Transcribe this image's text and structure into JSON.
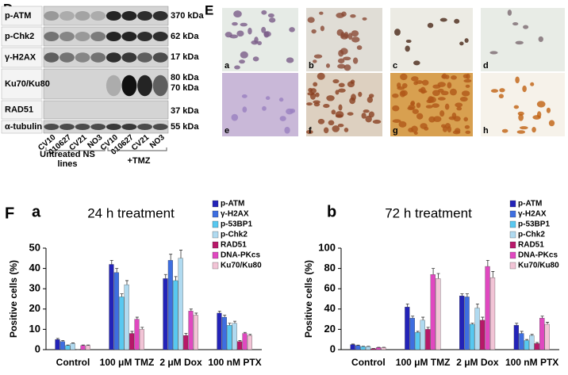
{
  "panel_d": {
    "letter": "D",
    "proteins": [
      "p-ATM",
      "p-Chk2",
      "γ-H2AX",
      "Ku70/Ku80",
      "RAD51",
      "α-tubulin"
    ],
    "sizes": [
      "370 kDa",
      "62 kDa",
      "17 kDa",
      "80 kDa",
      "70 kDa",
      "37 kDa",
      "55 kDa"
    ],
    "lanes": [
      "CV10",
      "010627",
      "CV21",
      "NO3",
      "CV10",
      "010627",
      "CV21",
      "NO3"
    ],
    "groups": [
      "Untreated NS lines",
      "+TMZ"
    ]
  },
  "panel_e": {
    "letter": "E",
    "labels": [
      "a",
      "b",
      "c",
      "d",
      "e",
      "f",
      "g",
      "h"
    ]
  },
  "panel_f": {
    "letter": "F"
  },
  "chart_data": [
    {
      "type": "bar",
      "panel": "a",
      "title": "24 h treatment",
      "ylabel": "Positive cells (%)",
      "categories": [
        "Control",
        "100 μM TMZ",
        "2 μM Dox",
        "100 nM PTX"
      ],
      "ylim": [
        0,
        50
      ],
      "yticks": [
        0,
        10,
        20,
        30,
        40,
        50
      ],
      "legend": "upper right",
      "series": [
        {
          "name": "p-ATM",
          "color": "#2323b8",
          "values": [
            5,
            42,
            35,
            18
          ],
          "errors": [
            0.5,
            2,
            2,
            1
          ]
        },
        {
          "name": "γ-H2AX",
          "color": "#3e6ee0",
          "values": [
            4,
            38,
            44,
            16
          ],
          "errors": [
            0.5,
            2,
            3,
            1
          ]
        },
        {
          "name": "p-53BP1",
          "color": "#58c8f0",
          "values": [
            2,
            26,
            34,
            12
          ],
          "errors": [
            0.3,
            1.5,
            2,
            1
          ]
        },
        {
          "name": "p-Chk2",
          "color": "#b0daf0",
          "values": [
            3,
            32,
            45,
            13
          ],
          "errors": [
            0.3,
            2,
            4,
            1
          ]
        },
        {
          "name": "RAD51",
          "color": "#b8186a",
          "values": [
            0,
            8,
            7,
            4
          ],
          "errors": [
            0,
            1,
            1,
            0.5
          ]
        },
        {
          "name": "DNA-PKcs",
          "color": "#e048c0",
          "values": [
            2,
            15,
            19,
            8
          ],
          "errors": [
            0.3,
            1,
            1,
            0.5
          ]
        },
        {
          "name": "Ku70/Ku80",
          "color": "#f2c4d6",
          "values": [
            2,
            10,
            17,
            7
          ],
          "errors": [
            0.3,
            1,
            1,
            0.5
          ]
        }
      ]
    },
    {
      "type": "bar",
      "panel": "b",
      "title": "72 h treatment",
      "ylabel": "Positive cells (%)",
      "categories": [
        "Control",
        "100 μM TMZ",
        "2 μM Dox",
        "100 nM PTX"
      ],
      "ylim": [
        0,
        100
      ],
      "yticks": [
        0,
        20,
        40,
        60,
        80,
        100
      ],
      "legend": "upper right",
      "series": [
        {
          "name": "p-ATM",
          "color": "#2323b8",
          "values": [
            5,
            42,
            53,
            24
          ],
          "errors": [
            0.5,
            3,
            2,
            2
          ]
        },
        {
          "name": "γ-H2AX",
          "color": "#3e6ee0",
          "values": [
            4,
            31,
            52,
            16
          ],
          "errors": [
            0.5,
            2,
            3,
            2
          ]
        },
        {
          "name": "p-53BP1",
          "color": "#58c8f0",
          "values": [
            3,
            17,
            25,
            9
          ],
          "errors": [
            0.3,
            1,
            1,
            1
          ]
        },
        {
          "name": "p-Chk2",
          "color": "#b0daf0",
          "values": [
            3,
            29,
            41,
            14
          ],
          "errors": [
            0.3,
            3,
            4,
            1
          ]
        },
        {
          "name": "RAD51",
          "color": "#b8186a",
          "values": [
            1,
            20,
            29,
            6
          ],
          "errors": [
            0.2,
            2,
            3,
            1
          ]
        },
        {
          "name": "DNA-PKcs",
          "color": "#e048c0",
          "values": [
            2,
            74,
            82,
            31
          ],
          "errors": [
            0.3,
            6,
            6,
            2
          ]
        },
        {
          "name": "Ku70/Ku80",
          "color": "#f2c4d6",
          "values": [
            2,
            70,
            71,
            25
          ],
          "errors": [
            0.3,
            5,
            6,
            2
          ]
        }
      ]
    }
  ]
}
